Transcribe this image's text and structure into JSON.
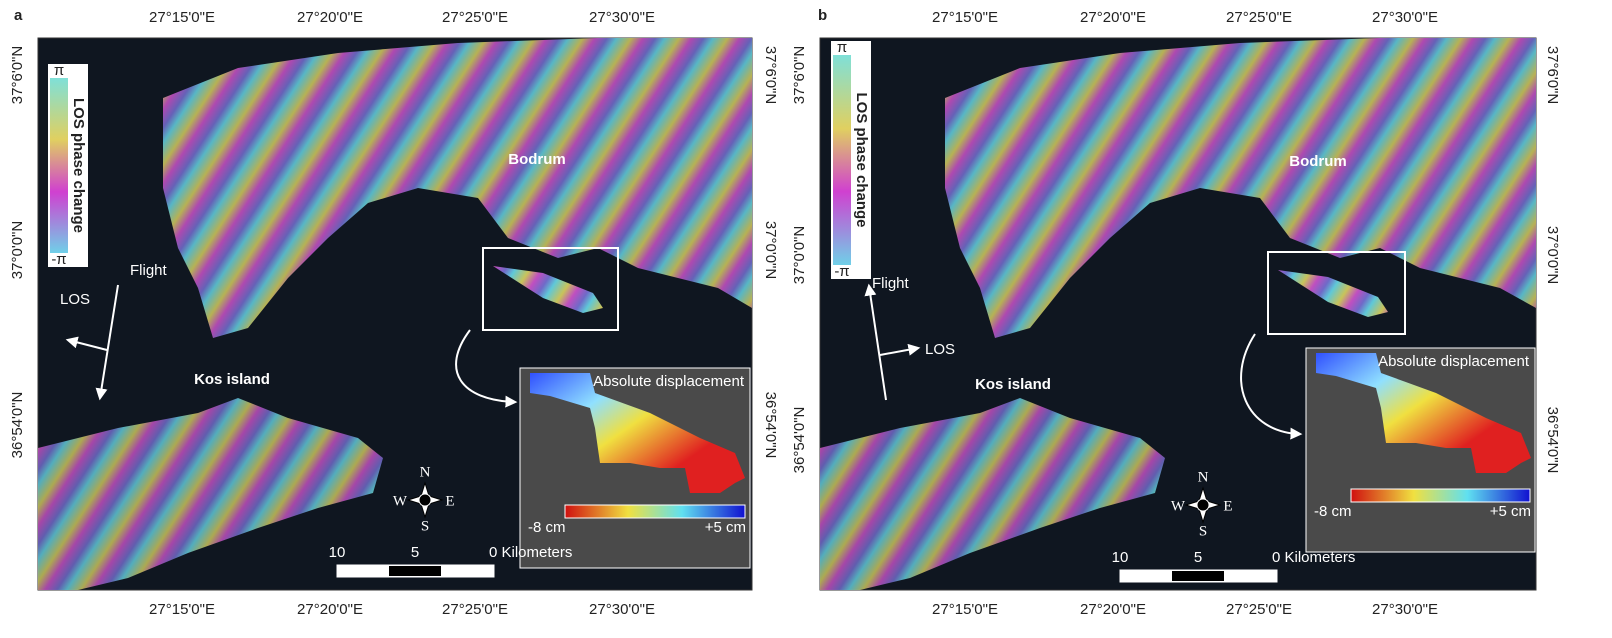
{
  "panels": [
    {
      "label": "a",
      "top_lon_labels": [
        "27°15'0\"E",
        "27°20'0\"E",
        "27°25'0\"E",
        "27°30'0\"E"
      ],
      "bottom_lon_labels": [
        "27°15'0\"E",
        "27°20'0\"E",
        "27°25'0\"E",
        "27°30'0\"E"
      ],
      "left_lat_labels": [
        "37°6'0\"N",
        "37°0'0\"N",
        "36°54'0\"N"
      ],
      "right_lat_labels": [
        "37°6'0\"N",
        "37°0'0\"N",
        "36°54'0\"N"
      ],
      "colorbar": {
        "title": "LOS phase change",
        "max_label": "π",
        "min_label": "-π"
      },
      "place_labels": [
        "Bodrum",
        "Kos island"
      ],
      "flight": "Flight",
      "los": "LOS",
      "inset": {
        "title": "Absolute displacement",
        "min_label": "-8 cm",
        "max_label": "+5 cm"
      },
      "compass": [
        "N",
        "S",
        "W",
        "E"
      ],
      "scale_bar": [
        "10",
        "5",
        "0 Kilometers"
      ]
    },
    {
      "label": "b",
      "top_lon_labels": [
        "27°15'0\"E",
        "27°20'0\"E",
        "27°25'0\"E",
        "27°30'0\"E"
      ],
      "bottom_lon_labels": [
        "27°15'0\"E",
        "27°20'0\"E",
        "27°25'0\"E",
        "27°30'0\"E"
      ],
      "left_lat_labels": [
        "37°6'0\"N",
        "37°0'0\"N",
        "36°54'0\"N"
      ],
      "right_lat_labels": [
        "37°6'0\"N",
        "37°0'0\"N",
        "36°54'0\"N"
      ],
      "colorbar": {
        "title": "LOS phase change",
        "max_label": "π",
        "min_label": "-π"
      },
      "place_labels": [
        "Bodrum",
        "Kos island"
      ],
      "flight": "Flight",
      "los": "LOS",
      "inset": {
        "title": "Absolute displacement",
        "min_label": "-8 cm",
        "max_label": "+5 cm"
      },
      "compass": [
        "N",
        "S",
        "W",
        "E"
      ],
      "scale_bar": [
        "10",
        "5",
        "0 Kilometers"
      ]
    }
  ]
}
